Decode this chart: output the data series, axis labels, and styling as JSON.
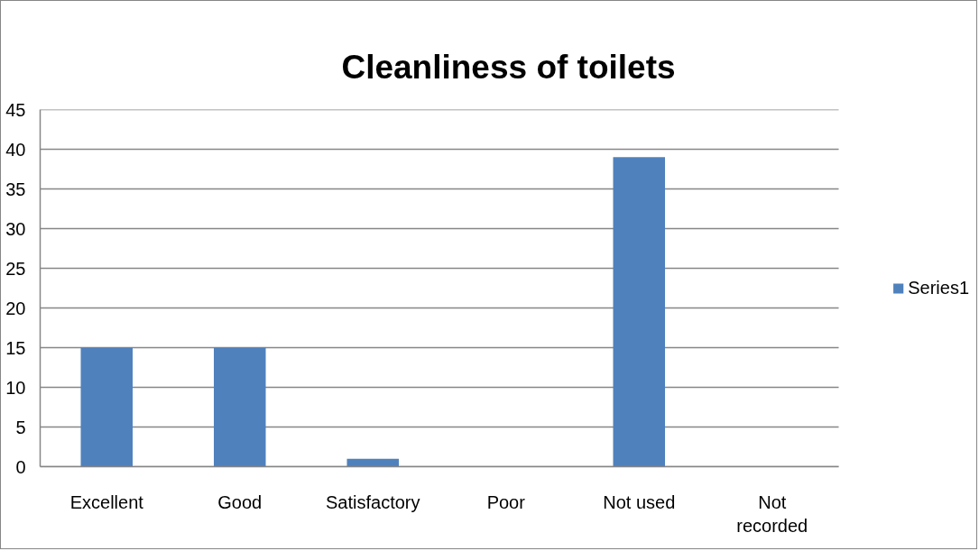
{
  "chart_data": {
    "type": "bar",
    "title": "Cleanliness of toilets",
    "categories": [
      "Excellent",
      "Good",
      "Satisfactory",
      "Poor",
      "Not used",
      "Not recorded"
    ],
    "series": [
      {
        "name": "Series1",
        "color": "#4f81bd",
        "values": [
          15,
          15,
          1,
          0,
          39,
          0
        ]
      }
    ],
    "ylim": [
      0,
      45
    ],
    "yticks": [
      0,
      5,
      10,
      15,
      20,
      25,
      30,
      35,
      40,
      45
    ],
    "grid": "y",
    "legend": "right"
  }
}
